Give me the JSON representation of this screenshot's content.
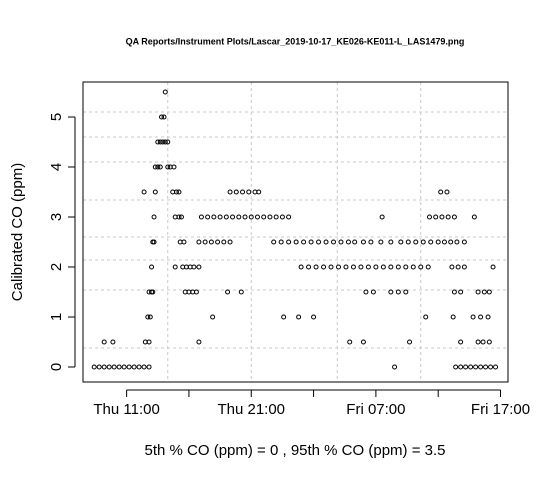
{
  "chart_data": {
    "type": "scatter",
    "title": "QA Reports/Instrument Plots/Lascar_2019-10-17_KE026-KE011-L_LAS1479.png",
    "y_label": "Calibrated CO (ppm)",
    "x_label": "5th % CO (ppm) =  0 , 95th % CO (ppm)  =  3.5",
    "xlim": [
      7.5,
      41.6
    ],
    "ylim": [
      -0.3,
      5.7
    ],
    "xticks": [
      {
        "value": 11,
        "label": "Thu 11:00"
      },
      {
        "value": 21,
        "label": "Thu 21:00"
      },
      {
        "value": 31,
        "label": "Fri 07:00"
      },
      {
        "value": 41,
        "label": "Fri 17:00"
      }
    ],
    "xminor": [
      16,
      26,
      36
    ],
    "yticks": [
      0,
      1,
      2,
      3,
      4,
      5
    ],
    "xgrid": [
      14.3,
      21,
      27.9,
      34.6
    ],
    "ygrid": [
      0.38,
      1.54,
      2.14,
      2.6,
      3.34,
      4.1,
      4.6,
      5.1
    ],
    "grid": true,
    "color": "#000000",
    "x": [
      8.4,
      8.8,
      9.2,
      9.6,
      10.0,
      10.4,
      10.8,
      11.2,
      11.6,
      12.0,
      12.4,
      12.8,
      9.2,
      9.9,
      12.5,
      12.8,
      12.7,
      12.9,
      12.8,
      13.0,
      13.1,
      13.0,
      13.1,
      13.2,
      13.2,
      12.4,
      13.3,
      13.3,
      13.5,
      13.7,
      13.5,
      13.7,
      13.9,
      14.1,
      14.3,
      13.8,
      14.0,
      14.1,
      14.3,
      14.5,
      14.8,
      14.7,
      15.0,
      15.2,
      14.9,
      15.2,
      15.4,
      15.3,
      15.6,
      14.9,
      15.5,
      15.8,
      16.1,
      16.4,
      16.8,
      15.7,
      16.0,
      16.3,
      16.6,
      16.8,
      17.9,
      19.1,
      20.2,
      16.8,
      17.3,
      17.8,
      18.3,
      18.8,
      19.3,
      17.0,
      17.5,
      18.0,
      18.5,
      19.0,
      19.5,
      20.0,
      20.5,
      21.0,
      21.5,
      22.0,
      22.5,
      23.0,
      23.5,
      24.0,
      19.3,
      19.8,
      20.3,
      20.8,
      21.3,
      21.6,
      22.8,
      23.4,
      24.0,
      24.6,
      25.2,
      25.8,
      26.4,
      27.0,
      27.6,
      28.2,
      28.8,
      29.3,
      30.0,
      23.6,
      24.8,
      26.0,
      25.0,
      25.6,
      26.2,
      26.8,
      27.4,
      28.0,
      28.6,
      29.2,
      29.8,
      30.4,
      31.0,
      31.6,
      32.2,
      32.8,
      33.4,
      34.0,
      34.6,
      35.2,
      30.6,
      31.4,
      32.2,
      33.0,
      33.6,
      34.2,
      34.8,
      35.4,
      36.0,
      30.2,
      30.8,
      32.2,
      32.8,
      33.4,
      28.9,
      30.0,
      33.7,
      32.5,
      31.5,
      35.0,
      35.3,
      35.8,
      36.3,
      36.8,
      37.3,
      36.2,
      36.7,
      36.5,
      37.0,
      37.5,
      38.1,
      37.1,
      37.6,
      38.1,
      37.3,
      37.8,
      39.2,
      39.7,
      40.1,
      37.2,
      38.8,
      39.4,
      40.0,
      37.8,
      39.2,
      39.6,
      40.1,
      37.4,
      37.8,
      38.2,
      38.6,
      39.0,
      39.4,
      39.8,
      40.2,
      40.6,
      38.9,
      40.4
    ],
    "values": [
      0,
      0,
      0,
      0,
      0,
      0,
      0,
      0,
      0,
      0,
      0,
      0,
      0.5,
      0.5,
      0.5,
      0.5,
      1,
      1,
      1.5,
      1.5,
      1.5,
      2,
      2.5,
      2.5,
      3,
      3.5,
      3.5,
      4,
      4,
      4,
      4.5,
      4.5,
      4.5,
      4.5,
      4.5,
      5,
      5,
      5.5,
      4,
      4,
      4,
      3.5,
      3.5,
      3.5,
      3,
      3,
      3,
      2.5,
      2.5,
      2,
      2,
      2,
      2,
      2,
      2,
      1.5,
      1.5,
      1.5,
      1.5,
      0.5,
      1,
      1.5,
      1.5,
      2.5,
      2.5,
      2.5,
      2.5,
      2.5,
      2.5,
      3,
      3,
      3,
      3,
      3,
      3,
      3,
      3,
      3,
      3,
      3,
      3,
      3,
      3,
      3,
      3.5,
      3.5,
      3.5,
      3.5,
      3.5,
      3.5,
      2.5,
      2.5,
      2.5,
      2.5,
      2.5,
      2.5,
      2.5,
      2.5,
      2.5,
      2.5,
      2.5,
      2.5,
      2.5,
      1,
      1,
      1,
      2,
      2,
      2,
      2,
      2,
      2,
      2,
      2,
      2,
      2,
      2,
      2,
      2,
      2,
      2,
      2,
      2,
      2,
      2.5,
      2.5,
      2.5,
      2.5,
      2.5,
      2.5,
      2.5,
      2.5,
      2.5,
      1.5,
      1.5,
      1.5,
      1.5,
      1.5,
      0.5,
      0.5,
      0.5,
      0,
      3,
      1,
      3,
      3,
      3,
      3,
      3,
      3.5,
      3.5,
      2.5,
      2.5,
      2.5,
      2.5,
      2,
      2,
      2,
      1.5,
      1.5,
      1.5,
      1.5,
      1.5,
      1,
      1,
      1,
      1,
      0.5,
      0.5,
      0.5,
      0.5,
      0,
      0,
      0,
      0,
      0,
      0,
      0,
      0,
      0,
      3,
      2
    ]
  }
}
